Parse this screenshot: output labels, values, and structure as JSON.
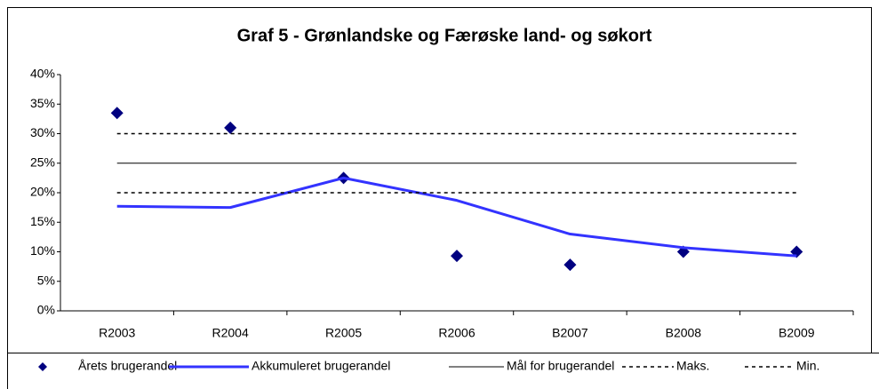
{
  "chart_data": {
    "type": "line",
    "title": "Graf 5 - Grønlandske og Færøske land- og søkort",
    "categories": [
      "R2003",
      "R2004",
      "R2005",
      "R2006",
      "B2007",
      "B2008",
      "B2009"
    ],
    "series": [
      {
        "name": "Årets brugerandel",
        "color": "#000080",
        "marker": "diamond",
        "line_style": "none",
        "values": [
          33.5,
          31,
          22.5,
          9.3,
          7.8,
          10,
          10
        ]
      },
      {
        "name": "Akkumuleret brugerandel",
        "color": "#3333ff",
        "marker": "none",
        "line_style": "solid",
        "line_width": 3,
        "values": [
          17.7,
          17.5,
          22.5,
          18.7,
          13,
          10.7,
          9.3
        ]
      },
      {
        "name": "Mål for brugerandel",
        "color": "#000000",
        "marker": "none",
        "line_style": "solid",
        "line_width": 1,
        "values": [
          25,
          25,
          25,
          25,
          25,
          25,
          25
        ]
      },
      {
        "name": "Maks.",
        "color": "#000000",
        "marker": "none",
        "line_style": "dotted",
        "line_width": 1.5,
        "values": [
          30,
          30,
          30,
          30,
          30,
          30,
          30
        ]
      },
      {
        "name": "Min.",
        "color": "#000000",
        "marker": "none",
        "line_style": "dotted",
        "line_width": 1.5,
        "values": [
          20,
          20,
          20,
          20,
          20,
          20,
          20
        ]
      }
    ],
    "ylim": [
      0,
      40
    ],
    "yticks": [
      {
        "value": 0,
        "label": "0%"
      },
      {
        "value": 5,
        "label": "5%"
      },
      {
        "value": 10,
        "label": "10%"
      },
      {
        "value": 15,
        "label": "15%"
      },
      {
        "value": 20,
        "label": "20%"
      },
      {
        "value": 25,
        "label": "25%"
      },
      {
        "value": 30,
        "label": "30%"
      },
      {
        "value": 35,
        "label": "35%"
      },
      {
        "value": 40,
        "label": "40%"
      }
    ],
    "grid": false,
    "legend": "bottom"
  }
}
